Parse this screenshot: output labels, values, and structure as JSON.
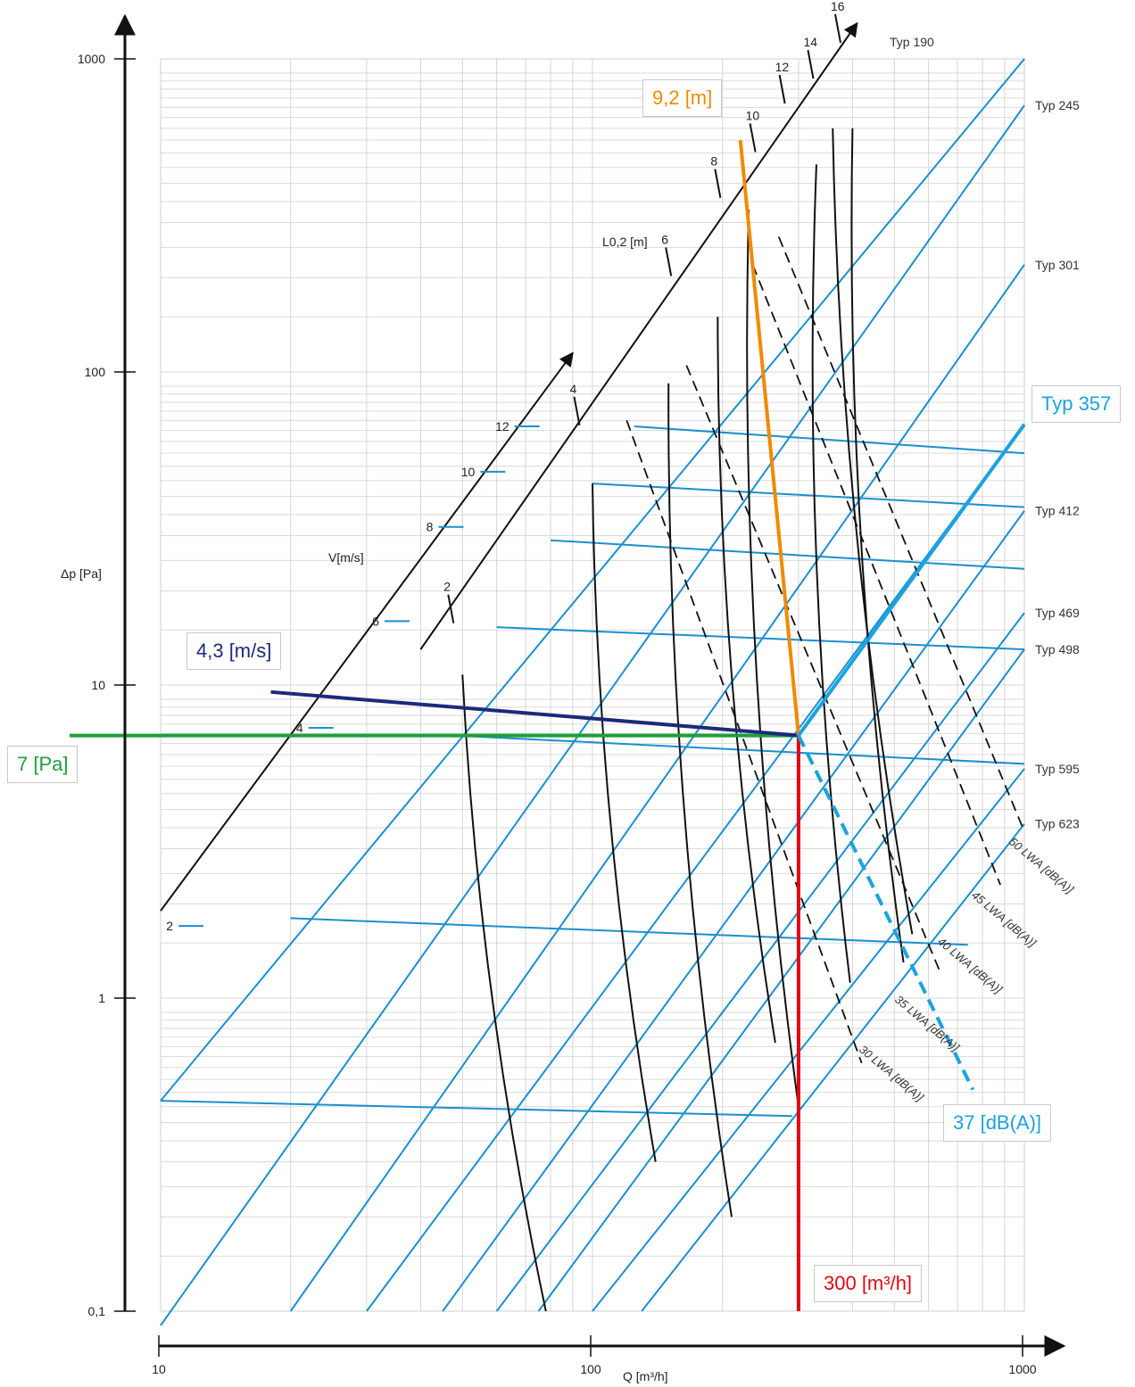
{
  "chart_data": {
    "type": "line",
    "x_scale": "log",
    "y_scale": "log",
    "xlim": [
      10,
      1000
    ],
    "ylim": [
      0.1,
      1000
    ],
    "xlabel": "Q [m³/h]",
    "ylabel": "Δp [Pa]",
    "x_ticks": [
      {
        "value": 10,
        "label": "10"
      },
      {
        "value": 100,
        "label": "100"
      },
      {
        "value": 1000,
        "label": "1000"
      }
    ],
    "y_ticks": [
      {
        "value": 0.1,
        "label": "0,1"
      },
      {
        "value": 1,
        "label": "1"
      },
      {
        "value": 10,
        "label": "10"
      },
      {
        "value": 100,
        "label": "100"
      },
      {
        "value": 1000,
        "label": "1000"
      }
    ],
    "grid": true,
    "colors": {
      "type_lines": "#1a8fd1",
      "noise_lines": "#111111",
      "flow": "#e30613",
      "pressure": "#1e9f3a",
      "velocity": "#1b2a7a",
      "throw": "#f08a00",
      "selected_type": "#1aa3e0"
    },
    "type_series": [
      {
        "name": "Typ 190",
        "x": [
          10,
          1000
        ],
        "y": [
          0.47,
          1000
        ]
      },
      {
        "name": "Typ 245",
        "x": [
          10,
          1000
        ],
        "y": [
          0.09,
          710
        ]
      },
      {
        "name": "Typ 301",
        "x": [
          20,
          1000
        ],
        "y": [
          0.1,
          220
        ]
      },
      {
        "name": "Typ 357",
        "x": [
          30,
          1000
        ],
        "y": [
          0.1,
          68
        ]
      },
      {
        "name": "Typ 412",
        "x": [
          45,
          1000
        ],
        "y": [
          0.1,
          36
        ]
      },
      {
        "name": "Typ 469",
        "x": [
          60,
          1000
        ],
        "y": [
          0.1,
          17
        ]
      },
      {
        "name": "Typ 498",
        "x": [
          75,
          1000
        ],
        "y": [
          0.1,
          13
        ]
      },
      {
        "name": "Typ 595",
        "x": [
          100,
          1000
        ],
        "y": [
          0.1,
          5.4
        ]
      },
      {
        "name": "Typ 623",
        "x": [
          130,
          1000
        ],
        "y": [
          0.1,
          3.6
        ]
      }
    ],
    "range_lines": [
      {
        "x": [
          10,
          290
        ],
        "y": [
          0.47,
          0.42
        ]
      },
      {
        "x": [
          20,
          740
        ],
        "y": [
          1.8,
          1.48
        ]
      },
      {
        "x": [
          48,
          1000
        ],
        "y": [
          6.9,
          5.6
        ]
      },
      {
        "x": [
          60,
          1000
        ],
        "y": [
          15.3,
          13.0
        ]
      },
      {
        "x": [
          80,
          1000
        ],
        "y": [
          29.0,
          23.5
        ]
      },
      {
        "x": [
          100,
          1000
        ],
        "y": [
          44.0,
          37.0
        ]
      },
      {
        "x": [
          125,
          1000
        ],
        "y": [
          67.0,
          55.0
        ]
      }
    ],
    "noise_series": [
      {
        "name": "30 LWA [dB(A)]",
        "x": [
          50,
          78
        ],
        "y": [
          10.8,
          0.1
        ]
      },
      {
        "name": "35 LWA [dB(A)]",
        "x": [
          100,
          140
        ],
        "y": [
          44,
          0.3
        ]
      },
      {
        "name": "40 LWA [dB(A)]",
        "x": [
          150,
          210
        ],
        "y": [
          92,
          0.2
        ]
      },
      {
        "name": "45 LWA [dB(A)]",
        "x": [
          230,
          300
        ],
        "y": [
          330,
          0.45
        ]
      },
      {
        "name": "50 LWA [dB(A)]",
        "x": [
          400,
          525
        ],
        "y": [
          600,
          1.3
        ]
      }
    ],
    "noise_extra_solid": [
      {
        "x": [
          195,
          265
        ],
        "y": [
          150,
          0.72
        ]
      },
      {
        "x": [
          330,
          395
        ],
        "y": [
          460,
          1.12
        ]
      },
      {
        "x": [
          360,
          550
        ],
        "y": [
          600,
          1.6
        ]
      }
    ],
    "noise_dashed": [
      {
        "x": [
          120,
          420
        ],
        "y": [
          70,
          0.62
        ]
      },
      {
        "x": [
          165,
          640
        ],
        "y": [
          105,
          1.2
        ]
      },
      {
        "x": [
          235,
          880
        ],
        "y": [
          220,
          2.3
        ]
      },
      {
        "x": [
          270,
          1000
        ],
        "y": [
          270,
          3.4
        ]
      }
    ],
    "velocity_scale": {
      "title": "V[m/s]",
      "line_x": [
        10,
        90
      ],
      "line_y": [
        1.9,
        115
      ],
      "ticks": [
        {
          "value": "2",
          "x": 11,
          "y": 1.7
        },
        {
          "value": "4",
          "x": 22,
          "y": 7.3
        },
        {
          "value": "6",
          "x": 33,
          "y": 16.0
        },
        {
          "value": "8",
          "x": 44,
          "y": 32.0
        },
        {
          "value": "10",
          "x": 55,
          "y": 48.0
        },
        {
          "value": "12",
          "x": 66,
          "y": 67.0
        }
      ]
    },
    "throw_scale": {
      "title": "L0,2 [m]",
      "line_x": [
        40,
        410
      ],
      "line_y": [
        13,
        1300
      ],
      "ticks": [
        {
          "value": "2",
          "x": 47,
          "y": 17.5
        },
        {
          "value": "4",
          "x": 92,
          "y": 75
        },
        {
          "value": "6",
          "x": 150,
          "y": 225
        },
        {
          "value": "8",
          "x": 195,
          "y": 400
        },
        {
          "value": "10",
          "x": 235,
          "y": 560
        },
        {
          "value": "12",
          "x": 275,
          "y": 800
        },
        {
          "value": "14",
          "x": 320,
          "y": 960
        },
        {
          "value": "16",
          "x": 370,
          "y": 1250
        }
      ]
    },
    "example_flow": {
      "x": [
        300,
        300
      ],
      "y": [
        0.1,
        6.9
      ]
    },
    "example_pressure": {
      "x": [
        10,
        300
      ],
      "y": [
        6.9,
        6.9
      ]
    },
    "example_velocity": {
      "x": [
        18,
        300
      ],
      "y": [
        9.5,
        6.9
      ]
    },
    "example_throw": {
      "x": [
        220,
        300
      ],
      "y": [
        550,
        6.9
      ]
    },
    "example_type": {
      "x": [
        300,
        1000
      ],
      "y": [
        6.9,
        68
      ]
    },
    "example_noise": {
      "x": [
        300,
        760
      ],
      "y": [
        6.9,
        0.51
      ]
    },
    "annotations": {
      "throw": "9,2 [m]",
      "velocity": "4,3 [m/s]",
      "pressure": "7 [Pa]",
      "flow": "300 [m³/h]",
      "type": "Typ 357",
      "noise": "37 [dB(A)]"
    }
  }
}
